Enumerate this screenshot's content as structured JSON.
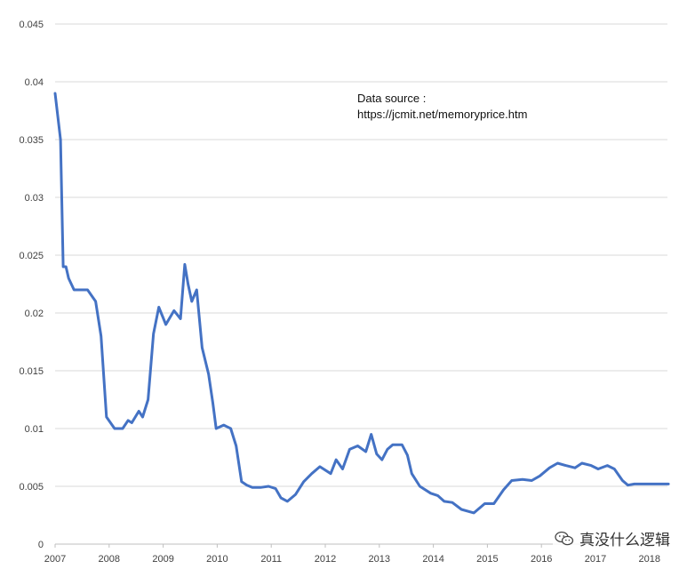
{
  "chart_data": {
    "type": "line",
    "title": "",
    "xlabel": "",
    "ylabel": "",
    "x_ticks": [
      "2007",
      "2008",
      "2009",
      "2010",
      "2011",
      "2012",
      "2013",
      "2014",
      "2015",
      "2016",
      "2017",
      "2018"
    ],
    "y_ticks": [
      "0",
      "0.005",
      "0.01",
      "0.015",
      "0.02",
      "0.025",
      "0.03",
      "0.035",
      "0.04",
      "0.045"
    ],
    "ylim": [
      0,
      0.045
    ],
    "xlim": [
      2007,
      2018.2
    ],
    "grid": "horizontal",
    "color": "#4472C4",
    "annotation": [
      "Data source :",
      "https://jcmit.net/memoryprice.htm"
    ],
    "series": [
      {
        "x": [
          2007.0,
          2007.1,
          2007.15,
          2007.2,
          2007.25,
          2007.35,
          2007.45,
          2007.6,
          2007.75,
          2007.85,
          2007.95,
          2008.1,
          2008.25,
          2008.35,
          2008.42,
          2008.55,
          2008.62,
          2008.72,
          2008.82,
          2008.92,
          2009.05,
          2009.2,
          2009.32,
          2009.4,
          2009.46,
          2009.53,
          2009.62,
          2009.72,
          2009.84,
          2009.92,
          2009.98,
          2010.12,
          2010.25,
          2010.35,
          2010.45,
          2010.55,
          2010.65,
          2010.8,
          2010.95,
          2011.08,
          2011.18,
          2011.3,
          2011.45,
          2011.6,
          2011.75,
          2011.9,
          2012.1,
          2012.2,
          2012.32,
          2012.45,
          2012.6,
          2012.75,
          2012.85,
          2012.95,
          2013.05,
          2013.15,
          2013.25,
          2013.32,
          2013.42,
          2013.52,
          2013.6,
          2013.75,
          2013.95,
          2014.08,
          2014.2,
          2014.35,
          2014.52,
          2014.75,
          2014.95,
          2015.12,
          2015.3,
          2015.45,
          2015.65,
          2015.82,
          2015.97,
          2016.15,
          2016.3,
          2016.45,
          2016.62,
          2016.75,
          2016.92,
          2017.05,
          2017.22,
          2017.35,
          2017.5,
          2017.6,
          2017.72,
          2017.82,
          2017.92,
          2018.0,
          2018.1,
          2018.2,
          2018.3,
          2018.35
        ],
        "values": [
          0.039,
          0.035,
          0.024,
          0.024,
          0.023,
          0.022,
          0.022,
          0.022,
          0.021,
          0.018,
          0.011,
          0.01,
          0.01,
          0.0107,
          0.0105,
          0.0115,
          0.011,
          0.0125,
          0.0182,
          0.0205,
          0.019,
          0.0202,
          0.0195,
          0.0242,
          0.0225,
          0.021,
          0.022,
          0.017,
          0.0147,
          0.0122,
          0.01,
          0.0103,
          0.01,
          0.0085,
          0.0054,
          0.0051,
          0.0049,
          0.0049,
          0.005,
          0.0048,
          0.004,
          0.0037,
          0.0043,
          0.0054,
          0.0061,
          0.0067,
          0.0061,
          0.0073,
          0.0065,
          0.0082,
          0.0085,
          0.008,
          0.0095,
          0.0078,
          0.0073,
          0.0082,
          0.0086,
          0.0086,
          0.0086,
          0.0077,
          0.0061,
          0.005,
          0.0044,
          0.0042,
          0.0037,
          0.0036,
          0.003,
          0.0027,
          0.0035,
          0.0035,
          0.0047,
          0.0055,
          0.0056,
          0.0055,
          0.0059,
          0.0066,
          0.007,
          0.0068,
          0.0066,
          0.007,
          0.0068,
          0.0065,
          0.0068,
          0.0065,
          0.0055,
          0.0051,
          0.0052,
          0.0052,
          0.0052,
          0.0052,
          0.0052,
          0.0052,
          0.0052,
          0.0052
        ]
      }
    ]
  },
  "watermark": {
    "text": "真没什么逻辑",
    "icon": "wechat-icon"
  }
}
